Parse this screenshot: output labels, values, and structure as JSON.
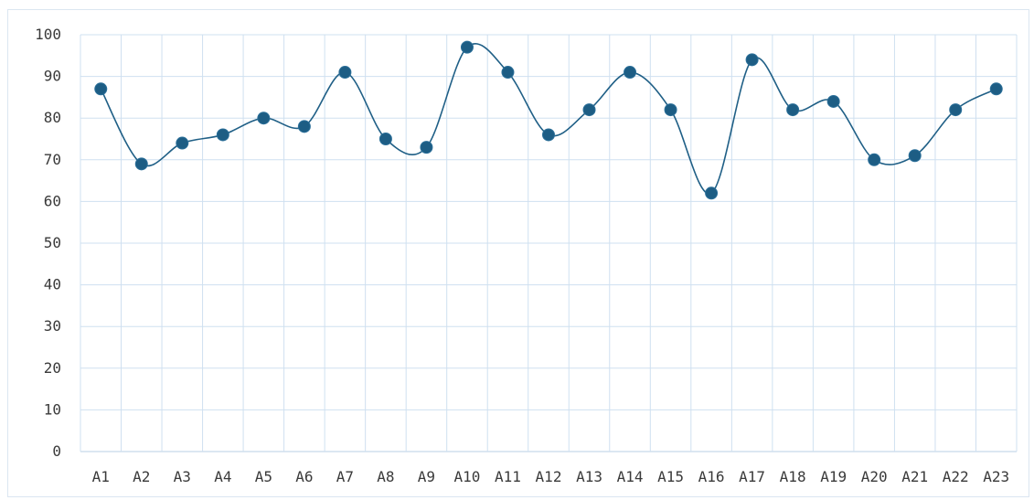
{
  "chart_data": {
    "type": "line",
    "smooth": true,
    "title": "",
    "xlabel": "",
    "ylabel": "",
    "categories": [
      "A1",
      "A2",
      "A3",
      "A4",
      "A5",
      "A6",
      "A7",
      "A8",
      "A9",
      "A10",
      "A11",
      "A12",
      "A13",
      "A14",
      "A15",
      "A16",
      "A17",
      "A18",
      "A19",
      "A20",
      "A21",
      "A22",
      "A23"
    ],
    "series": [
      {
        "values": [
          87,
          69,
          74,
          76,
          80,
          78,
          91,
          75,
          73,
          97,
          91,
          76,
          82,
          91,
          82,
          62,
          94,
          82,
          84,
          70,
          71,
          82,
          87
        ]
      }
    ],
    "ylim": [
      0,
      100
    ],
    "yticks": [
      0,
      10,
      20,
      30,
      40,
      50,
      60,
      70,
      80,
      90,
      100
    ],
    "grid": true,
    "legend": "none",
    "colors": {
      "line": "#1f5f86",
      "marker": "#1d5d84",
      "grid": "#cfe0f0",
      "axis": "#b9cfe6"
    }
  }
}
